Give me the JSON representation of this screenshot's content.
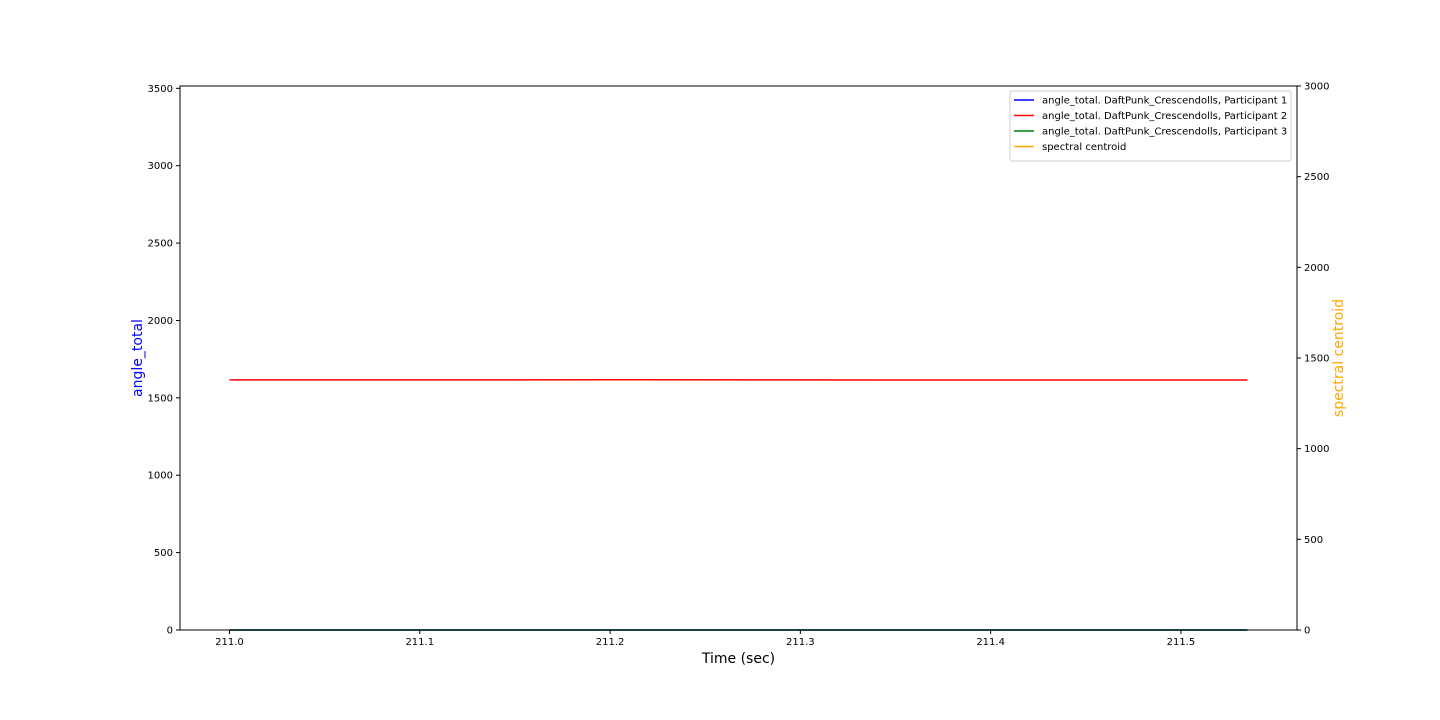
{
  "chart_data": {
    "type": "line",
    "title": "",
    "xlabel": "Time (sec)",
    "ylabel_left": "angle_total",
    "ylabel_right": "spectral centroid",
    "ylabel_left_color": "#0000ff",
    "ylabel_right_color": "#ffa500",
    "xlim": [
      210.974,
      211.561
    ],
    "ylim_left": [
      0,
      3515
    ],
    "ylim_right": [
      0,
      3000
    ],
    "x_ticks": [
      211.0,
      211.1,
      211.2,
      211.3,
      211.4,
      211.5
    ],
    "x_tick_labels": [
      "211.0",
      "211.1",
      "211.2",
      "211.3",
      "211.4",
      "211.5"
    ],
    "y_left_ticks": [
      0,
      500,
      1000,
      1500,
      2000,
      2500,
      3000,
      3500
    ],
    "y_left_tick_labels": [
      "0",
      "500",
      "1000",
      "1500",
      "2000",
      "2500",
      "3000",
      "3500"
    ],
    "y_right_ticks": [
      0,
      500,
      1000,
      1500,
      2000,
      2500,
      3000
    ],
    "y_right_tick_labels": [
      "0",
      "500",
      "1000",
      "1500",
      "2000",
      "2500",
      "3000"
    ],
    "grid": false,
    "legend_position": "top-right",
    "series": [
      {
        "name": "angle_total. DaftPunk_Crescendolls, Participant 1",
        "color": "#0000ff",
        "axis": "left",
        "x": [
          211.0,
          211.535
        ],
        "y": [
          0,
          0
        ]
      },
      {
        "name": "angle_total. DaftPunk_Crescendolls, Participant 2",
        "color": "#ff0000",
        "axis": "left",
        "x": [
          211.0,
          211.1,
          211.2,
          211.3,
          211.4,
          211.5,
          211.535
        ],
        "y": [
          1616,
          1616,
          1617,
          1616,
          1615,
          1615,
          1615
        ]
      },
      {
        "name": "angle_total. DaftPunk_Crescendolls, Participant 3",
        "color": "#008000",
        "axis": "left",
        "x": [
          211.0,
          211.535
        ],
        "y": [
          0,
          0
        ]
      },
      {
        "name": "spectral centroid",
        "color": "#ffa500",
        "axis": "right",
        "x": [],
        "y": []
      }
    ]
  }
}
